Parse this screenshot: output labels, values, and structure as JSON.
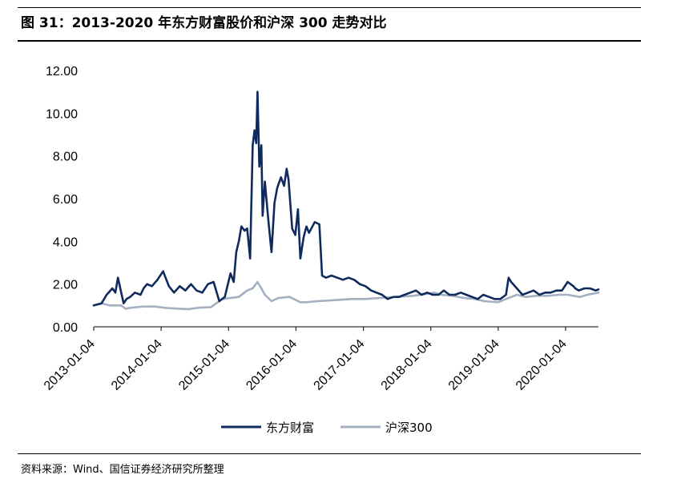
{
  "header": {
    "title": "图 31：2013-2020 年东方财富股价和沪深 300 走势对比"
  },
  "footer": {
    "source": "资料来源：Wind、国信证券经济研究所整理"
  },
  "chart_data": {
    "type": "line",
    "title": "",
    "xlabel": "",
    "ylabel": "",
    "ylim": [
      0,
      12
    ],
    "yticks": [
      "0.00",
      "2.00",
      "4.00",
      "6.00",
      "8.00",
      "10.00",
      "12.00"
    ],
    "xticks": [
      "2013-01-04",
      "2014-01-04",
      "2015-01-04",
      "2016-01-04",
      "2017-01-04",
      "2018-01-04",
      "2019-01-04",
      "2020-01-04"
    ],
    "xlim": [
      "2013-01-04",
      "2020-06-30"
    ],
    "grid": false,
    "legend": "bottom-center",
    "colors": {
      "东方财富": "#0f2a5c",
      "沪深300": "#a3b0c0"
    },
    "series": [
      {
        "name": "东方财富",
        "x": [
          "2013-01-04",
          "2013-02-15",
          "2013-03-15",
          "2013-04-15",
          "2013-05-01",
          "2013-05-15",
          "2013-06-15",
          "2013-07-01",
          "2013-07-20",
          "2013-08-15",
          "2013-09-15",
          "2013-10-01",
          "2013-10-20",
          "2013-11-15",
          "2013-12-15",
          "2014-01-15",
          "2014-02-15",
          "2014-03-15",
          "2014-04-15",
          "2014-05-15",
          "2014-06-15",
          "2014-07-15",
          "2014-08-15",
          "2014-09-15",
          "2014-10-15",
          "2014-11-15",
          "2014-12-15",
          "2015-01-15",
          "2015-02-01",
          "2015-02-15",
          "2015-03-01",
          "2015-03-15",
          "2015-04-01",
          "2015-04-15",
          "2015-05-01",
          "2015-05-15",
          "2015-05-25",
          "2015-06-03",
          "2015-06-10",
          "2015-06-20",
          "2015-07-01",
          "2015-07-08",
          "2015-07-20",
          "2015-08-10",
          "2015-08-25",
          "2015-09-10",
          "2015-09-25",
          "2015-10-15",
          "2015-11-01",
          "2015-11-15",
          "2015-11-25",
          "2015-12-15",
          "2016-01-01",
          "2016-01-15",
          "2016-01-28",
          "2016-02-15",
          "2016-03-01",
          "2016-03-15",
          "2016-04-15",
          "2016-05-10",
          "2016-05-25",
          "2016-06-15",
          "2016-07-15",
          "2016-08-15",
          "2016-09-15",
          "2016-10-15",
          "2016-11-15",
          "2016-12-15",
          "2017-01-15",
          "2017-02-15",
          "2017-03-15",
          "2017-04-15",
          "2017-05-15",
          "2017-06-15",
          "2017-07-15",
          "2017-08-15",
          "2017-09-15",
          "2017-10-15",
          "2017-11-15",
          "2017-12-15",
          "2018-01-15",
          "2018-02-15",
          "2018-03-15",
          "2018-04-15",
          "2018-05-15",
          "2018-06-15",
          "2018-07-15",
          "2018-08-15",
          "2018-09-15",
          "2018-10-15",
          "2018-11-15",
          "2018-12-15",
          "2019-01-15",
          "2019-02-15",
          "2019-03-01",
          "2019-03-15",
          "2019-04-15",
          "2019-05-15",
          "2019-06-15",
          "2019-07-15",
          "2019-08-15",
          "2019-09-15",
          "2019-10-15",
          "2019-11-15",
          "2019-12-15",
          "2020-01-15",
          "2020-02-15",
          "2020-02-25",
          "2020-03-15",
          "2020-04-15",
          "2020-05-15",
          "2020-06-15",
          "2020-06-30"
        ],
        "values": [
          1.0,
          1.1,
          1.5,
          1.8,
          1.6,
          2.3,
          1.1,
          1.3,
          1.4,
          1.6,
          1.5,
          1.8,
          2.0,
          1.9,
          2.2,
          2.6,
          1.9,
          1.6,
          1.9,
          1.7,
          2.0,
          1.7,
          1.6,
          2.0,
          2.1,
          1.2,
          1.4,
          2.5,
          2.1,
          3.5,
          4.0,
          4.7,
          4.5,
          4.6,
          3.2,
          8.5,
          9.2,
          8.6,
          11.0,
          7.5,
          8.5,
          5.2,
          6.8,
          4.8,
          3.5,
          5.8,
          6.5,
          7.0,
          6.6,
          7.4,
          6.9,
          4.6,
          4.3,
          5.5,
          3.2,
          4.2,
          4.7,
          4.4,
          4.9,
          4.8,
          2.4,
          2.3,
          2.4,
          2.3,
          2.2,
          2.3,
          2.2,
          2.0,
          1.9,
          1.7,
          1.6,
          1.5,
          1.3,
          1.4,
          1.4,
          1.5,
          1.6,
          1.7,
          1.5,
          1.6,
          1.5,
          1.5,
          1.7,
          1.5,
          1.5,
          1.6,
          1.5,
          1.4,
          1.3,
          1.5,
          1.4,
          1.3,
          1.3,
          1.5,
          2.3,
          2.1,
          1.8,
          1.5,
          1.6,
          1.7,
          1.5,
          1.6,
          1.6,
          1.7,
          1.7,
          2.1,
          1.9,
          1.8,
          1.7,
          1.8,
          1.8,
          1.7,
          1.75
        ]
      },
      {
        "name": "沪深300",
        "x": [
          "2013-01-04",
          "2013-02-15",
          "2013-04-01",
          "2013-06-01",
          "2013-06-25",
          "2013-08-01",
          "2013-10-01",
          "2013-12-01",
          "2014-02-01",
          "2014-04-01",
          "2014-06-01",
          "2014-08-01",
          "2014-10-01",
          "2014-12-01",
          "2015-01-15",
          "2015-03-01",
          "2015-04-15",
          "2015-05-15",
          "2015-06-10",
          "2015-07-01",
          "2015-07-20",
          "2015-08-25",
          "2015-10-01",
          "2015-12-01",
          "2016-01-28",
          "2016-03-01",
          "2016-05-01",
          "2016-08-01",
          "2016-11-01",
          "2017-01-15",
          "2017-04-01",
          "2017-07-01",
          "2017-10-01",
          "2018-01-25",
          "2018-03-01",
          "2018-05-01",
          "2018-07-01",
          "2018-09-01",
          "2018-10-20",
          "2019-01-04",
          "2019-02-15",
          "2019-04-15",
          "2019-06-01",
          "2019-08-01",
          "2019-10-01",
          "2019-12-01",
          "2020-01-15",
          "2020-03-20",
          "2020-05-01",
          "2020-06-30"
        ],
        "values": [
          1.0,
          1.1,
          1.0,
          1.0,
          0.85,
          0.9,
          0.95,
          0.95,
          0.88,
          0.85,
          0.83,
          0.9,
          0.92,
          1.3,
          1.35,
          1.4,
          1.7,
          1.8,
          2.1,
          1.8,
          1.5,
          1.2,
          1.35,
          1.4,
          1.15,
          1.15,
          1.2,
          1.25,
          1.3,
          1.3,
          1.35,
          1.4,
          1.45,
          1.6,
          1.5,
          1.45,
          1.35,
          1.3,
          1.2,
          1.15,
          1.3,
          1.5,
          1.4,
          1.45,
          1.45,
          1.5,
          1.5,
          1.4,
          1.5,
          1.6
        ]
      }
    ]
  }
}
